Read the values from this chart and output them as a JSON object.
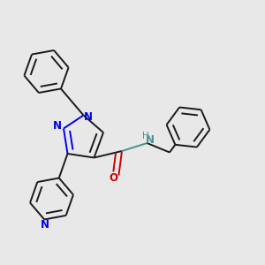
{
  "background_color": "#e8e8e8",
  "bond_color": "#1a1a1a",
  "nitrogen_color": "#0000ee",
  "oxygen_color": "#cc0000",
  "nh_color": "#4a9090",
  "figure_size": [
    3.0,
    3.0
  ],
  "dpi": 100,
  "bond_lw": 1.4,
  "dbo": 0.022,
  "xlim": [
    0,
    1
  ],
  "ylim": [
    0,
    1
  ]
}
